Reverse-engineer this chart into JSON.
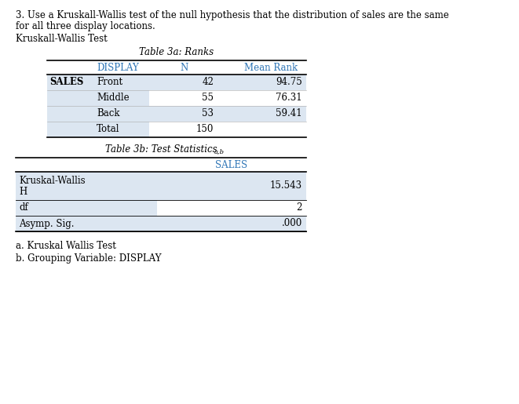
{
  "intro_line1": "3. Use a Kruskall-Wallis test of the null hypothesis that the distribution of sales are the same",
  "intro_line2": "for all three display locations.",
  "subtitle": "Kruskall-Wallis Test",
  "table1_title": "Table 3a: Ranks",
  "table1_col_headers": [
    "DISPLAY",
    "N",
    "Mean Rank"
  ],
  "table1_row_label": "SALES",
  "table1_rows": [
    [
      "Front",
      "42",
      "94.75"
    ],
    [
      "Middle",
      "55",
      "76.31"
    ],
    [
      "Back",
      "53",
      "59.41"
    ],
    [
      "Total",
      "150",
      ""
    ]
  ],
  "table2_title": "Table 3b: Test Statistics",
  "table2_title_super": "a,b",
  "table2_header": "SALES",
  "table2_rows": [
    [
      "Kruskal-Wallis",
      "H",
      "15.543"
    ],
    [
      "df",
      "",
      "2"
    ],
    [
      "Asymp. Sig.",
      "",
      ".000"
    ]
  ],
  "footnote_a": "a. Kruskal Wallis Test",
  "footnote_b": "b. Grouping Variable: DISPLAY",
  "bg_color": "#ffffff",
  "text_color": "#000000",
  "header_color": "#2e75b6",
  "shade_color": "#dce6f1",
  "line_color": "#000000",
  "font_size_intro": 8.5,
  "font_size_table": 8.5,
  "font_size_title": 8.5
}
